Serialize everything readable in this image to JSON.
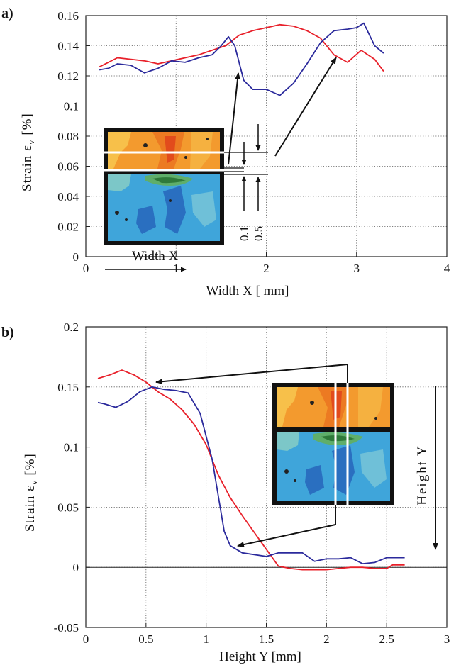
{
  "chart_data": [
    {
      "panel_label": "a)",
      "type": "line",
      "xlabel": "Width X [ mm]",
      "ylabel": "Strain ε",
      "ylabel_sub": "v",
      "ylabel_unit": " [%]",
      "xlim": [
        0,
        4
      ],
      "ylim": [
        0,
        0.16
      ],
      "xticks": [
        "0",
        "1",
        "2",
        "3",
        "4"
      ],
      "yticks": [
        "0",
        "0.02",
        "0.04",
        "0.06",
        "0.08",
        "0.1",
        "0.12",
        "0.14",
        "0.16"
      ],
      "grid": true,
      "series": [
        {
          "color": "#e8202a",
          "x": [
            0.15,
            0.25,
            0.35,
            0.5,
            0.65,
            0.8,
            0.95,
            1.1,
            1.25,
            1.4,
            1.55,
            1.7,
            1.85,
            2.0,
            2.15,
            2.3,
            2.45,
            2.6,
            2.75,
            2.9,
            3.05,
            3.2,
            3.3
          ],
          "y": [
            0.126,
            0.129,
            0.132,
            0.131,
            0.13,
            0.128,
            0.13,
            0.132,
            0.134,
            0.137,
            0.14,
            0.147,
            0.15,
            0.152,
            0.154,
            0.153,
            0.15,
            0.145,
            0.134,
            0.129,
            0.137,
            0.131,
            0.123
          ]
        },
        {
          "color": "#2b2a9c",
          "x": [
            0.15,
            0.25,
            0.35,
            0.5,
            0.65,
            0.8,
            0.95,
            1.1,
            1.25,
            1.4,
            1.5,
            1.58,
            1.65,
            1.75,
            1.85,
            2.0,
            2.15,
            2.3,
            2.45,
            2.6,
            2.75,
            2.9,
            3.0,
            3.08,
            3.2,
            3.3
          ],
          "y": [
            0.124,
            0.125,
            0.128,
            0.127,
            0.122,
            0.125,
            0.13,
            0.129,
            0.132,
            0.134,
            0.14,
            0.146,
            0.14,
            0.117,
            0.111,
            0.111,
            0.107,
            0.115,
            0.128,
            0.142,
            0.15,
            0.151,
            0.152,
            0.155,
            0.14,
            0.135
          ]
        }
      ],
      "inset": {
        "label": "Width X",
        "dim_labels": [
          "0.1",
          "0.5"
        ]
      }
    },
    {
      "panel_label": "b)",
      "type": "line",
      "xlabel": "Height Y [mm]",
      "ylabel": "Strain ε",
      "ylabel_sub": "v",
      "ylabel_unit": " [%]",
      "xlim": [
        0,
        3
      ],
      "ylim": [
        -0.05,
        0.2
      ],
      "xticks": [
        "0",
        "0.5",
        "1",
        "1.5",
        "2",
        "2.5",
        "3"
      ],
      "yticks": [
        "-0.05",
        "0",
        "0.05",
        "0.1",
        "0.15",
        "0.2"
      ],
      "grid": true,
      "series": [
        {
          "color": "#e8202a",
          "x": [
            0.1,
            0.2,
            0.3,
            0.4,
            0.5,
            0.6,
            0.7,
            0.8,
            0.9,
            1.0,
            1.1,
            1.2,
            1.3,
            1.4,
            1.5,
            1.6,
            1.7,
            1.8,
            1.9,
            2.0,
            2.1,
            2.2,
            2.3,
            2.4,
            2.5,
            2.55,
            2.65
          ],
          "y": [
            0.157,
            0.16,
            0.164,
            0.16,
            0.154,
            0.146,
            0.14,
            0.131,
            0.119,
            0.102,
            0.077,
            0.058,
            0.043,
            0.029,
            0.015,
            0.001,
            -0.001,
            -0.002,
            -0.002,
            -0.002,
            -0.001,
            0.0,
            0.0,
            -0.001,
            -0.001,
            0.002,
            0.002
          ]
        },
        {
          "color": "#2b2a9c",
          "x": [
            0.1,
            0.15,
            0.25,
            0.35,
            0.45,
            0.55,
            0.65,
            0.75,
            0.85,
            0.95,
            1.05,
            1.1,
            1.15,
            1.2,
            1.3,
            1.5,
            1.6,
            1.8,
            1.9,
            2.0,
            2.1,
            2.2,
            2.3,
            2.4,
            2.5,
            2.65
          ],
          "y": [
            0.137,
            0.136,
            0.133,
            0.138,
            0.146,
            0.15,
            0.148,
            0.147,
            0.145,
            0.128,
            0.09,
            0.06,
            0.03,
            0.018,
            0.012,
            0.009,
            0.012,
            0.012,
            0.005,
            0.007,
            0.007,
            0.008,
            0.003,
            0.004,
            0.008,
            0.008
          ]
        }
      ],
      "inset": {
        "label": "Height Y"
      }
    }
  ]
}
